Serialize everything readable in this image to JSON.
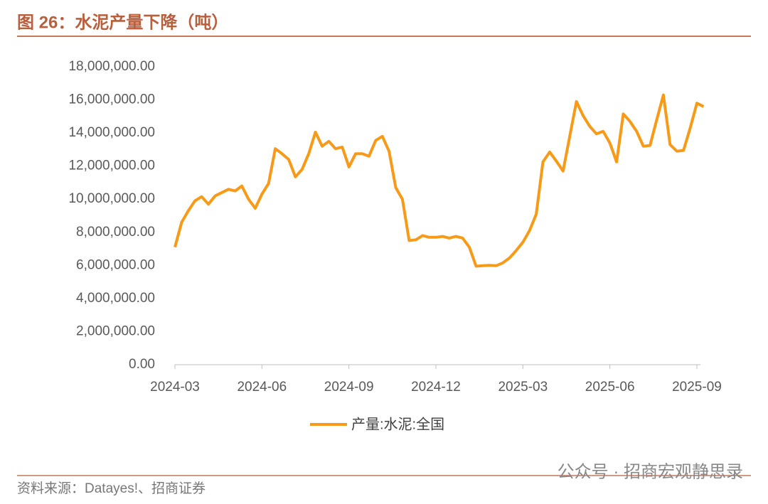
{
  "chart_data": {
    "type": "line",
    "title": "图 26：水泥产量下降（吨）",
    "categories": [
      "2024-03",
      null,
      null,
      null,
      null,
      null,
      null,
      null,
      null,
      null,
      null,
      null,
      null,
      "2024-06",
      null,
      null,
      null,
      null,
      null,
      null,
      null,
      null,
      null,
      null,
      null,
      null,
      "2024-09",
      null,
      null,
      null,
      null,
      null,
      null,
      null,
      null,
      null,
      null,
      null,
      null,
      "2024-12",
      null,
      null,
      null,
      null,
      null,
      null,
      null,
      null,
      null,
      null,
      null,
      null,
      "2025-03",
      null,
      null,
      null,
      null,
      null,
      null,
      null,
      null,
      null,
      null,
      null,
      null,
      "2025-06",
      null,
      null,
      null,
      null,
      null,
      null,
      null,
      null,
      null,
      null,
      null,
      null,
      "2025-09",
      null
    ],
    "series": [
      {
        "name": "产量:水泥:全国",
        "color": "#f79a17",
        "values": [
          7100000,
          8600000,
          9300000,
          9900000,
          10150000,
          9700000,
          10200000,
          10400000,
          10600000,
          10500000,
          10800000,
          10000000,
          9450000,
          10300000,
          10950000,
          13050000,
          12750000,
          12400000,
          11350000,
          11800000,
          12750000,
          14050000,
          13200000,
          13500000,
          13050000,
          13150000,
          11950000,
          12750000,
          12750000,
          12600000,
          13550000,
          13800000,
          12900000,
          10700000,
          10000000,
          7500000,
          7550000,
          7800000,
          7700000,
          7700000,
          7750000,
          7650000,
          7750000,
          7650000,
          7100000,
          5950000,
          5980000,
          6000000,
          5980000,
          6150000,
          6450000,
          6900000,
          7400000,
          8100000,
          9100000,
          12250000,
          12850000,
          12300000,
          11700000,
          13800000,
          15900000,
          15050000,
          14400000,
          13950000,
          14100000,
          13400000,
          12250000,
          15150000,
          14700000,
          14100000,
          13200000,
          13250000,
          14800000,
          16300000,
          13300000,
          12900000,
          12950000,
          14300000,
          15800000,
          15600000
        ]
      }
    ],
    "ylim": [
      0,
      18000000
    ],
    "yticks": [
      {
        "value": 0,
        "label": "0.00"
      },
      {
        "value": 2000000,
        "label": "2,000,000.00"
      },
      {
        "value": 4000000,
        "label": "4,000,000.00"
      },
      {
        "value": 6000000,
        "label": "6,000,000.00"
      },
      {
        "value": 8000000,
        "label": "8,000,000.00"
      },
      {
        "value": 10000000,
        "label": "10,000,000.00"
      },
      {
        "value": 12000000,
        "label": "12,000,000.00"
      },
      {
        "value": 14000000,
        "label": "14,000,000.00"
      },
      {
        "value": 16000000,
        "label": "16,000,000.00"
      },
      {
        "value": 18000000,
        "label": "18,000,000.00"
      }
    ],
    "legend": "bottom"
  },
  "source": "资料来源：Datayes!、招商证券",
  "watermark": "公众号 · 招商宏观静思录"
}
